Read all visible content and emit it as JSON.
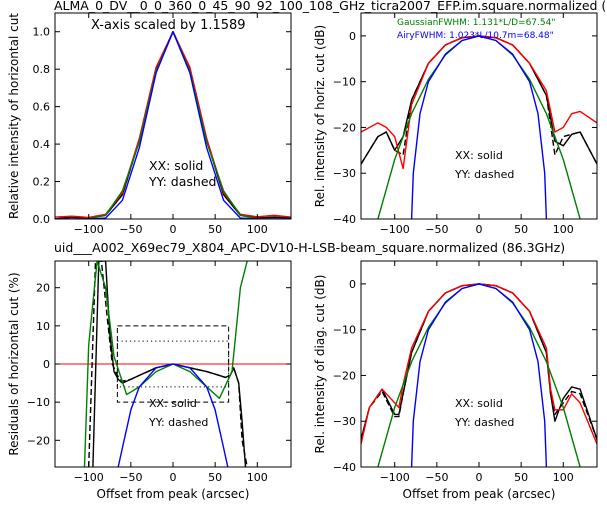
{
  "figure": {
    "top_title": "ALMA_0_DV__0_0_360_0_45_90_92_100_108_GHz_ticra2007_EFP.im.square.normalized (",
    "mid_title": "uid___A002_X69ec79_X804_APC-DV10-H-LSB-beam_square.normalized (86.3GHz)",
    "mid_title_color": "#ff0000",
    "scale_note": "X-axis scaled by 1.1589",
    "gauss_note": "GaussianFWHM: 1.131*L/D=67.54\"",
    "airy_note": "AiryFWHM: 1.023*L/10.7m=68.48\"",
    "gauss_color": "#008000",
    "airy_color": "#0000ff"
  },
  "chart_data": [
    {
      "type": "line",
      "panel": "top-left",
      "ylabel": "Relative intensity of horizontal cut",
      "xlim": [
        -140,
        140
      ],
      "ylim": [
        0,
        1.1
      ],
      "xticks": [
        -100,
        -50,
        0,
        50,
        100
      ],
      "yticks": [
        0.0,
        0.2,
        0.4,
        0.6,
        0.8,
        1.0
      ],
      "notes": [
        "XX: solid",
        "YY: dashed"
      ],
      "series": [
        {
          "color": "#000000",
          "style": "solid",
          "x": [
            -140,
            -120,
            -100,
            -80,
            -60,
            -40,
            -20,
            0,
            20,
            40,
            60,
            80,
            100,
            120,
            140
          ],
          "y": [
            0.0,
            0.01,
            0.005,
            0.02,
            0.13,
            0.42,
            0.8,
            1.0,
            0.8,
            0.42,
            0.13,
            0.02,
            0.005,
            0.01,
            0.005
          ]
        },
        {
          "color": "#000000",
          "style": "dashed",
          "x": [
            -140,
            -120,
            -100,
            -80,
            -60,
            -40,
            -20,
            0,
            20,
            40,
            60,
            80,
            100,
            120,
            140
          ],
          "y": [
            0.0,
            0.01,
            0.005,
            0.02,
            0.13,
            0.42,
            0.8,
            1.0,
            0.8,
            0.42,
            0.13,
            0.02,
            0.005,
            0.01,
            0.005
          ]
        },
        {
          "color": "#ff0000",
          "style": "solid",
          "x": [
            -140,
            -120,
            -100,
            -80,
            -60,
            -40,
            -20,
            0,
            20,
            40,
            60,
            80,
            100,
            120,
            140
          ],
          "y": [
            0.01,
            0.015,
            0.008,
            0.025,
            0.14,
            0.43,
            0.81,
            1.0,
            0.81,
            0.43,
            0.14,
            0.025,
            0.012,
            0.02,
            0.01
          ]
        },
        {
          "color": "#008000",
          "style": "solid",
          "x": [
            -140,
            -120,
            -100,
            -80,
            -60,
            -40,
            -20,
            0,
            20,
            40,
            60,
            80,
            100,
            120,
            140
          ],
          "y": [
            0.0,
            0.0,
            0.002,
            0.02,
            0.15,
            0.41,
            0.79,
            1.0,
            0.79,
            0.41,
            0.15,
            0.02,
            0.002,
            0.0,
            0.0
          ]
        },
        {
          "color": "#0000ff",
          "style": "solid",
          "x": [
            -140,
            -120,
            -100,
            -80,
            -60,
            -40,
            -20,
            0,
            20,
            40,
            60,
            80,
            100,
            120,
            140
          ],
          "y": [
            0.0,
            0.0,
            0.0,
            0.005,
            0.1,
            0.38,
            0.78,
            1.0,
            0.78,
            0.38,
            0.1,
            0.005,
            0.0,
            0.0,
            0.0
          ]
        }
      ]
    },
    {
      "type": "line",
      "panel": "top-right",
      "ylabel": "Rel. intensity of horiz. cut (dB)",
      "xlim": [
        -140,
        140
      ],
      "ylim": [
        -40,
        5
      ],
      "xticks": [
        -100,
        -50,
        0,
        50,
        100
      ],
      "yticks": [
        -40,
        -30,
        -20,
        -10,
        0
      ],
      "notes": [
        "XX: solid",
        "YY: dashed"
      ],
      "series": [
        {
          "color": "#000000",
          "style": "solid",
          "x": [
            -140,
            -120,
            -110,
            -100,
            -90,
            -80,
            -60,
            -40,
            -20,
            0,
            20,
            40,
            60,
            80,
            90,
            100,
            110,
            120,
            140
          ],
          "y": [
            -28,
            -22,
            -21,
            -25,
            -22,
            -14,
            -6,
            -2,
            -0.4,
            0,
            -0.4,
            -2,
            -6,
            -13,
            -23,
            -24,
            -21.5,
            -21,
            -28
          ]
        },
        {
          "color": "#000000",
          "style": "dashed",
          "x": [
            -140,
            -120,
            -110,
            -100,
            -90,
            -80,
            -60,
            -40,
            -20,
            0,
            20,
            40,
            60,
            80,
            90,
            95,
            100,
            110,
            120,
            140
          ],
          "y": [
            -28,
            -22,
            -21,
            -25,
            -26,
            -14,
            -6,
            -2,
            -0.4,
            0,
            -0.4,
            -2,
            -6,
            -13,
            -26,
            -24,
            -22,
            -21.5,
            -21,
            -28
          ]
        },
        {
          "color": "#ff0000",
          "style": "solid",
          "x": [
            -140,
            -120,
            -110,
            -100,
            -90,
            -80,
            -60,
            -40,
            -20,
            0,
            20,
            40,
            60,
            80,
            90,
            100,
            110,
            120,
            140
          ],
          "y": [
            -21,
            -19,
            -20,
            -22,
            -29,
            -15,
            -6,
            -2,
            -0.4,
            0,
            -0.4,
            -2,
            -6,
            -12,
            -21,
            -20,
            -17,
            -16.5,
            -19
          ]
        },
        {
          "color": "#008000",
          "style": "solid",
          "x": [
            -140,
            -120,
            -100,
            -80,
            -60,
            -40,
            -20,
            0,
            20,
            40,
            60,
            80,
            100,
            120,
            140
          ],
          "y": [
            -43,
            -40,
            -27,
            -17,
            -9.5,
            -4.2,
            -1,
            0,
            -1,
            -4.2,
            -9.5,
            -17,
            -27,
            -40,
            -43
          ]
        },
        {
          "color": "#0000ff",
          "style": "solid",
          "x": [
            -80,
            -78,
            -70,
            -60,
            -40,
            -20,
            0,
            20,
            40,
            60,
            70,
            78,
            80
          ],
          "y": [
            -40,
            -30,
            -17,
            -10,
            -4,
            -1,
            0,
            -1,
            -4,
            -10,
            -17,
            -30,
            -40
          ]
        }
      ]
    },
    {
      "type": "line",
      "panel": "bottom-left",
      "ylabel": "Residuals of horizontal cut (%)",
      "xlabel": "Offset from peak (arcsec)",
      "xlim": [
        -140,
        140
      ],
      "ylim": [
        -27,
        27
      ],
      "xticks": [
        -100,
        -50,
        0,
        50,
        100
      ],
      "yticks": [
        -20,
        -10,
        0,
        10,
        20
      ],
      "notes": [
        "XX: solid",
        "YY: dashed"
      ],
      "hline_zero_color": "#ff0000",
      "series": [
        {
          "color": "#000000",
          "style": "solid",
          "x": [
            -95,
            -88,
            -80,
            -75,
            -70,
            -65,
            -60,
            -50,
            -40,
            -20,
            0,
            20,
            40,
            55,
            62,
            68,
            72,
            78,
            82,
            86
          ],
          "y": [
            -27,
            27,
            27,
            8,
            -2,
            -4,
            -5,
            -4,
            -3,
            -1,
            0,
            -1,
            -2,
            -3,
            -3.5,
            -3,
            -1,
            -5,
            -15,
            -27
          ]
        },
        {
          "color": "#000000",
          "style": "dashed",
          "x": [
            -100,
            -92,
            -85,
            -78,
            -72,
            -66,
            -60,
            -50,
            -40,
            -20,
            0,
            20,
            40,
            55,
            62,
            68,
            72,
            78,
            82,
            88
          ],
          "y": [
            -27,
            27,
            27,
            12,
            0,
            -3,
            -4.5,
            -4,
            -3,
            -1,
            0,
            -1,
            -2,
            -3,
            -3.5,
            -3,
            -1,
            -5,
            -20,
            -27
          ]
        },
        {
          "color": "#008000",
          "style": "solid",
          "x": [
            -105,
            -100,
            -90,
            -80,
            -70,
            -55,
            -40,
            -20,
            0,
            20,
            40,
            55,
            70,
            80,
            88
          ],
          "y": [
            -27,
            5,
            27,
            20,
            2,
            -8,
            -6,
            -2,
            0,
            -2,
            -6,
            -9,
            -2,
            20,
            27
          ]
        },
        {
          "color": "#0000ff",
          "style": "solid",
          "x": [
            -65,
            -60,
            -50,
            -40,
            -20,
            0,
            20,
            40,
            50,
            60,
            65
          ],
          "y": [
            -27,
            -22,
            -12,
            -6,
            -1,
            0,
            -1,
            -6,
            -12,
            -22,
            -27
          ]
        }
      ],
      "boxes": [
        {
          "style": "dashed",
          "x": [
            -66,
            66
          ],
          "y": [
            -10,
            10
          ]
        },
        {
          "style": "dotted",
          "x": [
            -66,
            66
          ],
          "y": [
            -6,
            6
          ]
        }
      ]
    },
    {
      "type": "line",
      "panel": "bottom-right",
      "ylabel": "Rel. intensity of diag. cut (dB)",
      "xlabel": "Offset from peak (arcsec)",
      "xlim": [
        -140,
        140
      ],
      "ylim": [
        -40,
        5
      ],
      "xticks": [
        -100,
        -50,
        0,
        50,
        100
      ],
      "yticks": [
        -40,
        -30,
        -20,
        -10,
        0
      ],
      "notes": [
        "XX: solid",
        "YY: dashed"
      ],
      "series": [
        {
          "color": "#000000",
          "style": "solid",
          "x": [
            -140,
            -130,
            -115,
            -100,
            -95,
            -90,
            -80,
            -60,
            -40,
            -20,
            0,
            20,
            40,
            60,
            80,
            85,
            90,
            100,
            110,
            120,
            140
          ],
          "y": [
            -34,
            -27,
            -23,
            -28.5,
            -28.5,
            -24,
            -15,
            -6,
            -2,
            -0.4,
            0,
            -0.4,
            -2,
            -6,
            -15,
            -24,
            -30,
            -25,
            -22.5,
            -23,
            -34
          ]
        },
        {
          "color": "#000000",
          "style": "dashed",
          "x": [
            -140,
            -130,
            -115,
            -100,
            -95,
            -90,
            -80,
            -60,
            -40,
            -20,
            0,
            20,
            40,
            60,
            80,
            85,
            90,
            100,
            110,
            120,
            140
          ],
          "y": [
            -34,
            -27,
            -23.5,
            -29,
            -29,
            -24,
            -15,
            -6,
            -2,
            -0.4,
            0,
            -0.4,
            -2,
            -6,
            -15,
            -24,
            -28.5,
            -26,
            -23.5,
            -24,
            -34
          ]
        },
        {
          "color": "#ff0000",
          "style": "solid",
          "x": [
            -140,
            -130,
            -115,
            -100,
            -95,
            -90,
            -80,
            -60,
            -40,
            -20,
            0,
            20,
            40,
            60,
            80,
            85,
            90,
            100,
            110,
            120,
            140
          ],
          "y": [
            -35,
            -27,
            -23,
            -26,
            -27,
            -22,
            -14,
            -6,
            -2,
            -0.4,
            0,
            -0.4,
            -2,
            -6,
            -14,
            -23,
            -27.5,
            -27.5,
            -24,
            -26,
            -35
          ]
        },
        {
          "color": "#008000",
          "style": "solid",
          "x": [
            -140,
            -120,
            -100,
            -80,
            -60,
            -40,
            -20,
            0,
            20,
            40,
            60,
            80,
            100,
            120,
            140
          ],
          "y": [
            -43,
            -40,
            -27,
            -17,
            -9.5,
            -4.2,
            -1,
            0,
            -1,
            -4.2,
            -9.5,
            -17,
            -27,
            -40,
            -43
          ]
        },
        {
          "color": "#0000ff",
          "style": "solid",
          "x": [
            -80,
            -78,
            -70,
            -60,
            -40,
            -20,
            0,
            20,
            40,
            60,
            70,
            78,
            80
          ],
          "y": [
            -40,
            -30,
            -17,
            -10,
            -4,
            -1,
            0,
            -1,
            -4,
            -10,
            -17,
            -30,
            -40
          ]
        }
      ]
    }
  ]
}
